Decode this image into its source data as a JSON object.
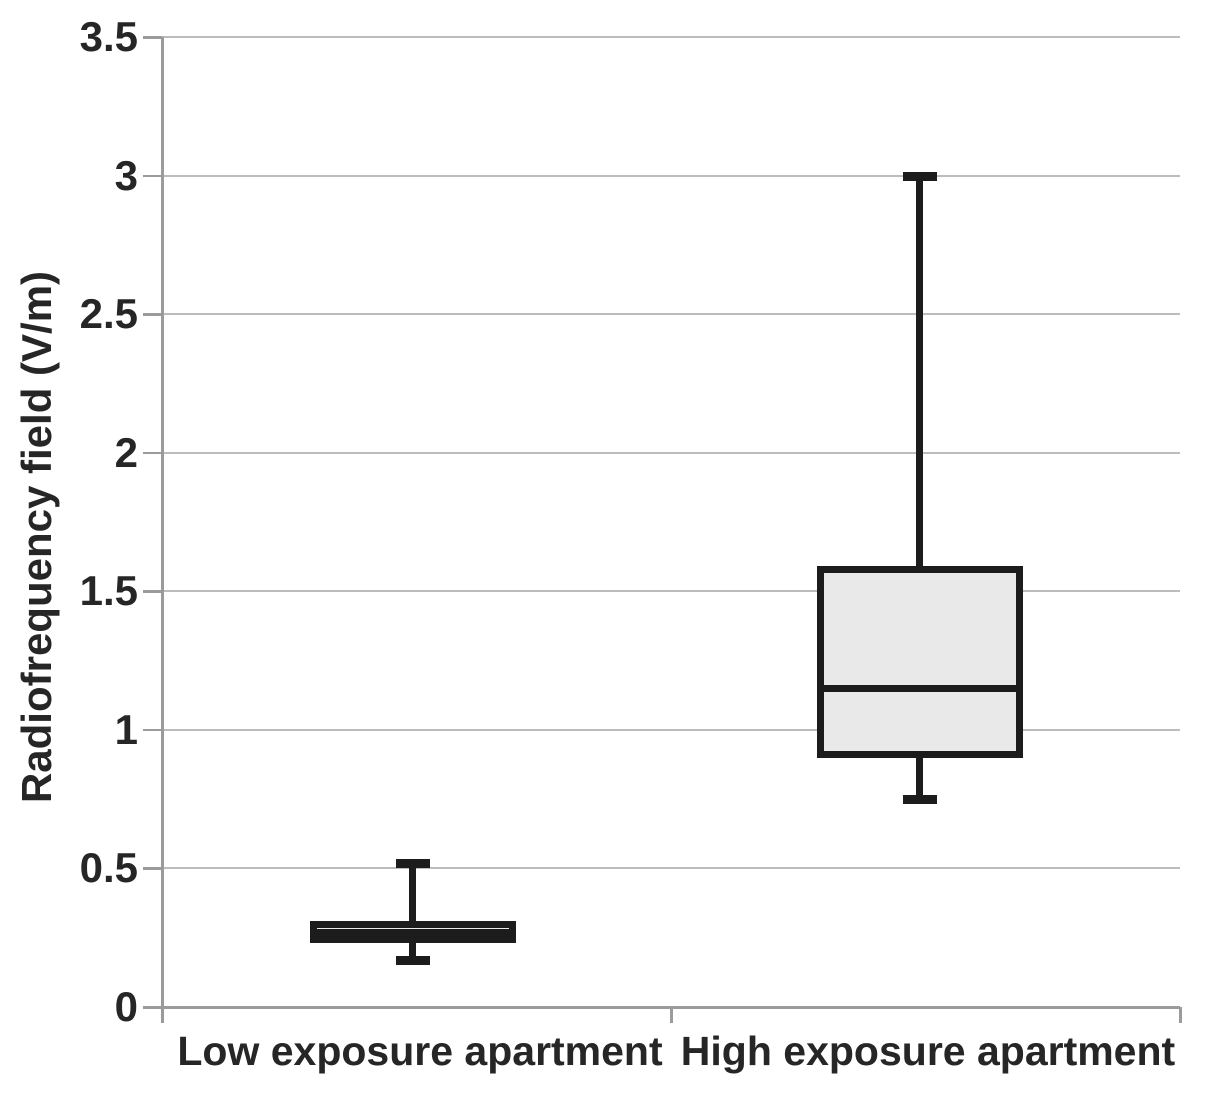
{
  "chart_data": {
    "type": "boxplot",
    "title": "",
    "xlabel": "",
    "ylabel": "Radiofrequency field (V/m)",
    "ylim": [
      0,
      3.5
    ],
    "yticks": [
      0,
      0.5,
      1,
      1.5,
      2,
      2.5,
      3,
      3.5
    ],
    "grid": true,
    "legend": false,
    "categories": [
      "Low exposure apartment",
      "High exposure apartment"
    ],
    "series": [
      {
        "name": "Low exposure apartment",
        "min": 0.17,
        "q1": 0.23,
        "median": 0.27,
        "q3": 0.31,
        "max": 0.52
      },
      {
        "name": "High exposure apartment",
        "min": 0.75,
        "q1": 0.9,
        "median": 1.15,
        "q3": 1.59,
        "max": 3.0
      }
    ]
  },
  "colors": {
    "background": "#ffffff",
    "gridline": "#bcbcbc",
    "axis": "#9b9b9b",
    "box_border": "#1c1c1c",
    "box_fill": "#e9e9e9",
    "whisker": "#1c1c1c",
    "text": "#262626"
  }
}
